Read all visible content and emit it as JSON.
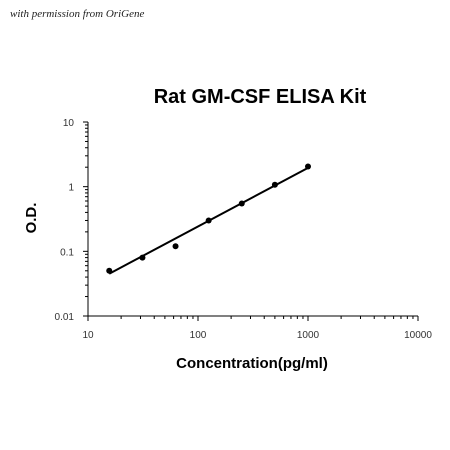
{
  "watermark": "with permission from OriGene",
  "chart_data": {
    "type": "scatter",
    "title": "Rat GM-CSF ELISA Kit",
    "xlabel": "Concentration(pg/ml)",
    "ylabel": "O.D.",
    "xscale": "log",
    "yscale": "log",
    "xlim": [
      10,
      10000
    ],
    "ylim": [
      0.01,
      10
    ],
    "x_ticks": [
      "10",
      "100",
      "1000",
      "10000"
    ],
    "y_ticks": [
      "0.01",
      "0.1",
      "1",
      "10"
    ],
    "grid": false,
    "legend": "none",
    "series": [
      {
        "x": [
          15.6,
          31.25,
          62.5,
          125,
          250,
          500,
          1000
        ],
        "y": [
          0.05,
          0.08,
          0.12,
          0.3,
          0.55,
          1.07,
          2.05
        ]
      }
    ],
    "fit_line": {
      "x": [
        15.6,
        1000
      ],
      "y": [
        0.045,
        1.95
      ]
    }
  }
}
